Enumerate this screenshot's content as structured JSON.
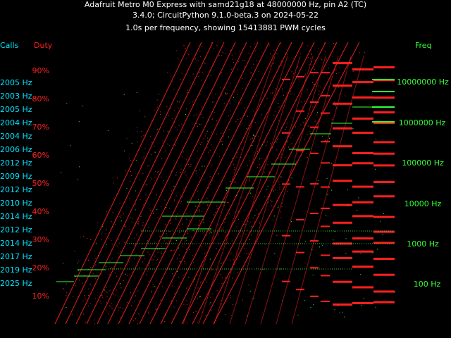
{
  "header": {
    "line1": "Adafruit Metro M0 Express with samd21g18 at 48000000 Hz, pin A2 (TC)",
    "line2": "3.4.0; CircuitPython 9.1.0-beta.3 on 2024-05-22",
    "line3": "1.0s per frequency, showing 15413881 PWM cycles"
  },
  "columns": {
    "calls": "Calls",
    "duty": "Duty",
    "freq": "Freq"
  },
  "colors": {
    "background": "#000000",
    "title": "#ffffff",
    "calls": "#00e5ff",
    "duty": "#ff2020",
    "freq": "#33ff33"
  },
  "chart_data": {
    "type": "scatter",
    "title": "Adafruit Metro M0 Express with samd21g18 at 48000000 Hz, pin A2 (TC)",
    "xlabel": "Freq",
    "ylabel": "Duty",
    "y_ticks": [
      "10%",
      "20%",
      "30%",
      "40%",
      "50%",
      "60%",
      "70%",
      "80%",
      "90%"
    ],
    "y_tick_values": [
      10,
      20,
      30,
      40,
      50,
      60,
      70,
      80,
      90
    ],
    "ylim": [
      0,
      100
    ],
    "grid": false,
    "freq_labels": [
      "100 Hz",
      "1000 Hz",
      "10000 Hz",
      "100000 Hz",
      "1000000 Hz",
      "10000000 Hz"
    ],
    "freq_values": [
      100,
      1000,
      10000,
      100000,
      1000000,
      10000000
    ],
    "calls_labels": [
      "2005 Hz",
      "2003 Hz",
      "2005 Hz",
      "2004 Hz",
      "2004 Hz",
      "2006 Hz",
      "2012 Hz",
      "2009 Hz",
      "2012 Hz",
      "2010 Hz",
      "2014 Hz",
      "2012 Hz",
      "2014 Hz",
      "2017 Hz",
      "2019 Hz",
      "2025 Hz"
    ],
    "series": [
      {
        "name": "Duty",
        "color": "#ff2020"
      },
      {
        "name": "Freq",
        "color": "#33ff33"
      }
    ]
  }
}
